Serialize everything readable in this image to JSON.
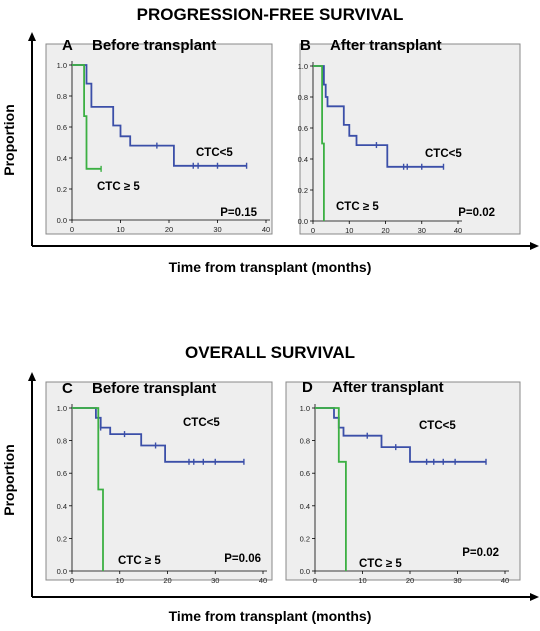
{
  "figure": {
    "sections": [
      {
        "title": "PROGRESSION-FREE SURVIVAL",
        "ylabel": "Proportion",
        "xlabel": "Time from transplant (months)"
      },
      {
        "title": "OVERALL SURVIVAL",
        "ylabel": "Proportion",
        "xlabel": "Time from transplant (months)"
      }
    ]
  },
  "colors": {
    "low_ctc": "#3b4fa8",
    "high_ctc": "#3cb043",
    "panel_bg": "#eeeeee",
    "panel_border": "#888888"
  },
  "chart_data": [
    {
      "type": "line",
      "panel": "A",
      "title": "Before transplant",
      "xlim": [
        0,
        40
      ],
      "ylim": [
        0,
        1.0
      ],
      "xticks": [
        0,
        10,
        20,
        30,
        40
      ],
      "yticks": [
        0.0,
        0.2,
        0.4,
        0.6,
        0.8,
        1.0
      ],
      "pvalue": "P=0.15",
      "series": [
        {
          "name": "CTC<5",
          "step": true,
          "x": [
            0,
            3,
            3,
            4,
            4,
            8.5,
            8.5,
            10,
            10,
            12,
            12,
            21,
            21,
            36
          ],
          "y": [
            1,
            1,
            0.88,
            0.88,
            0.73,
            0.73,
            0.61,
            0.61,
            0.54,
            0.54,
            0.48,
            0.48,
            0.35,
            0.35
          ],
          "censor_x": [
            17.5,
            25,
            26,
            30,
            36
          ],
          "censor_y": [
            0.48,
            0.35,
            0.35,
            0.35,
            0.35
          ]
        },
        {
          "name": "CTC ≥ 5",
          "step": true,
          "x": [
            0,
            2.5,
            2.5,
            3,
            3,
            6
          ],
          "y": [
            1,
            1,
            0.67,
            0.67,
            0.33,
            0.33
          ],
          "censor_x": [
            6
          ],
          "censor_y": [
            0.33
          ]
        }
      ]
    },
    {
      "type": "line",
      "panel": "B",
      "title": "After transplant",
      "xlim": [
        0,
        40
      ],
      "ylim": [
        0,
        1.0
      ],
      "xticks": [
        0,
        10,
        20,
        30,
        40
      ],
      "yticks": [
        0.0,
        0.2,
        0.4,
        0.6,
        0.8,
        1.0
      ],
      "pvalue": "P=0.02",
      "series": [
        {
          "name": "CTC<5",
          "step": true,
          "x": [
            0,
            3,
            3,
            3.5,
            3.5,
            4,
            4,
            8.5,
            8.5,
            10,
            10,
            12,
            12,
            20.5,
            20.5,
            36
          ],
          "y": [
            1,
            1,
            0.88,
            0.88,
            0.8,
            0.8,
            0.74,
            0.74,
            0.62,
            0.62,
            0.55,
            0.55,
            0.49,
            0.49,
            0.35,
            0.35
          ],
          "censor_x": [
            17.5,
            25,
            26,
            30,
            36
          ],
          "censor_y": [
            0.49,
            0.35,
            0.35,
            0.35,
            0.35
          ]
        },
        {
          "name": "CTC ≥ 5",
          "step": true,
          "x": [
            0,
            2.5,
            2.5,
            3,
            3
          ],
          "y": [
            1,
            1,
            0.5,
            0.5,
            0
          ],
          "censor_x": [],
          "censor_y": []
        }
      ]
    },
    {
      "type": "line",
      "panel": "C",
      "title": "Before transplant",
      "xlim": [
        0,
        40
      ],
      "ylim": [
        0,
        1.0
      ],
      "xticks": [
        0,
        10,
        20,
        30,
        40
      ],
      "yticks": [
        0.0,
        0.2,
        0.4,
        0.6,
        0.8,
        1.0
      ],
      "pvalue": "P=0.06",
      "series": [
        {
          "name": "CTC<5",
          "step": true,
          "x": [
            0,
            5,
            5,
            6,
            6,
            8,
            8,
            14.5,
            14.5,
            19.5,
            19.5,
            36
          ],
          "y": [
            1,
            1,
            0.94,
            0.94,
            0.88,
            0.88,
            0.84,
            0.84,
            0.77,
            0.77,
            0.67,
            0.67
          ],
          "censor_x": [
            6,
            11,
            17.5,
            24.5,
            25.5,
            27.5,
            30,
            36
          ],
          "censor_y": [
            0.88,
            0.84,
            0.77,
            0.67,
            0.67,
            0.67,
            0.67,
            0.67
          ]
        },
        {
          "name": "CTC ≥ 5",
          "step": true,
          "x": [
            0,
            5.5,
            5.5,
            6.5,
            6.5
          ],
          "y": [
            1,
            1,
            0.5,
            0.5,
            0
          ],
          "censor_x": [],
          "censor_y": []
        }
      ]
    },
    {
      "type": "line",
      "panel": "D",
      "title": "After transplant",
      "xlim": [
        0,
        40
      ],
      "ylim": [
        0,
        1.0
      ],
      "xticks": [
        0,
        10,
        20,
        30,
        40
      ],
      "yticks": [
        0.0,
        0.2,
        0.4,
        0.6,
        0.8,
        1.0
      ],
      "pvalue": "P=0.02",
      "series": [
        {
          "name": "CTC<5",
          "step": true,
          "x": [
            0,
            4,
            4,
            5,
            5,
            6,
            6,
            14,
            14,
            20,
            20,
            36
          ],
          "y": [
            1,
            1,
            0.94,
            0.94,
            0.88,
            0.88,
            0.83,
            0.83,
            0.76,
            0.76,
            0.67,
            0.67
          ],
          "censor_x": [
            11,
            17,
            23.5,
            25,
            27,
            29.5,
            36
          ],
          "censor_y": [
            0.83,
            0.76,
            0.67,
            0.67,
            0.67,
            0.67,
            0.67
          ]
        },
        {
          "name": "CTC ≥ 5",
          "step": true,
          "x": [
            0,
            5,
            5,
            6.5,
            6.5
          ],
          "y": [
            1,
            1,
            0.67,
            0.67,
            0
          ],
          "censor_x": [],
          "censor_y": []
        }
      ]
    }
  ]
}
